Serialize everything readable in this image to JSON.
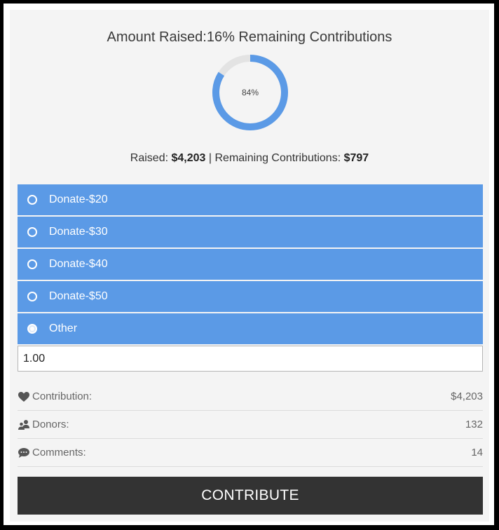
{
  "header": {
    "title": "Amount Raised:16% Remaining Contributions"
  },
  "progress": {
    "percent_label": "84%",
    "fraction": 0.84,
    "fill_color": "#5b9ae6",
    "track_color": "#e3e3e3"
  },
  "summary": {
    "raised_label": "Raised:",
    "raised_value": "$4,203",
    "separator": "|",
    "remaining_label": "Remaining Contributions:",
    "remaining_value": "$797"
  },
  "options": [
    {
      "label": "Donate-$20",
      "selected": false
    },
    {
      "label": "Donate-$30",
      "selected": false
    },
    {
      "label": "Donate-$40",
      "selected": false
    },
    {
      "label": "Donate-$50",
      "selected": false
    },
    {
      "label": "Other",
      "selected": true
    }
  ],
  "amount_input": {
    "value": "1.00"
  },
  "stats": {
    "contribution": {
      "label": "Contribution:",
      "value": "$4,203",
      "icon": "heart-icon"
    },
    "donors": {
      "label": "Donors:",
      "value": "132",
      "icon": "users-icon"
    },
    "comments": {
      "label": "Comments:",
      "value": "14",
      "icon": "comment-icon"
    }
  },
  "cta": {
    "label": "CONTRIBUTE"
  },
  "colors": {
    "accent": "#5b9ae6",
    "button_dark": "#333333"
  }
}
